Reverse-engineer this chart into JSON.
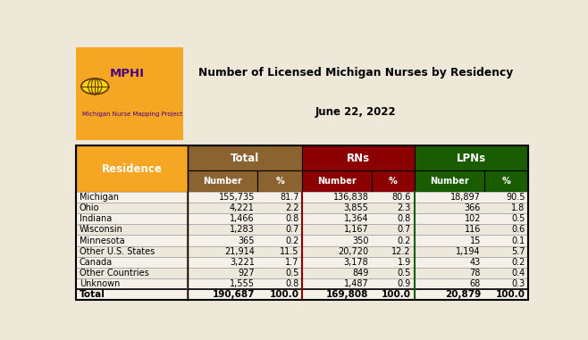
{
  "title_line1": "Number of Licensed Michigan Nurses by Residency",
  "title_line2": "June 22, 2022",
  "mphi_text": "MPHI",
  "subtitle": "Michigan Nurse Mapping Project",
  "col_group_colors": [
    "#8B6331",
    "#8B0000",
    "#1a5c00"
  ],
  "col_group_labels": [
    "Total",
    "RNs",
    "LPNs"
  ],
  "residence_header": "Residence",
  "residence_color": "#F5A623",
  "rows": [
    [
      "Michigan",
      "155,735",
      "81.7",
      "136,838",
      "80.6",
      "18,897",
      "90.5"
    ],
    [
      "Ohio",
      "4,221",
      "2.2",
      "3,855",
      "2.3",
      "366",
      "1.8"
    ],
    [
      "Indiana",
      "1,466",
      "0.8",
      "1,364",
      "0.8",
      "102",
      "0.5"
    ],
    [
      "Wisconsin",
      "1,283",
      "0.7",
      "1,167",
      "0.7",
      "116",
      "0.6"
    ],
    [
      "Minnesota",
      "365",
      "0.2",
      "350",
      "0.2",
      "15",
      "0.1"
    ],
    [
      "Other U.S. States",
      "21,914",
      "11.5",
      "20,720",
      "12.2",
      "1,194",
      "5.7"
    ],
    [
      "Canada",
      "3,221",
      "1.7",
      "3,178",
      "1.9",
      "43",
      "0.2"
    ],
    [
      "Other Countries",
      "927",
      "0.5",
      "849",
      "0.5",
      "78",
      "0.4"
    ],
    [
      "Unknown",
      "1,555",
      "0.8",
      "1,487",
      "0.9",
      "68",
      "0.3"
    ]
  ],
  "total_row": [
    "Total",
    "190,687",
    "100.0",
    "169,808",
    "100.0",
    "20,879",
    "100.0"
  ],
  "row_colors": [
    "#F5F0E8",
    "#EDE8DC"
  ],
  "background_color": "#EDE8D8",
  "title_color": "#000000",
  "mphi_color": "#4B0082",
  "subtitle_color": "#4B0082"
}
